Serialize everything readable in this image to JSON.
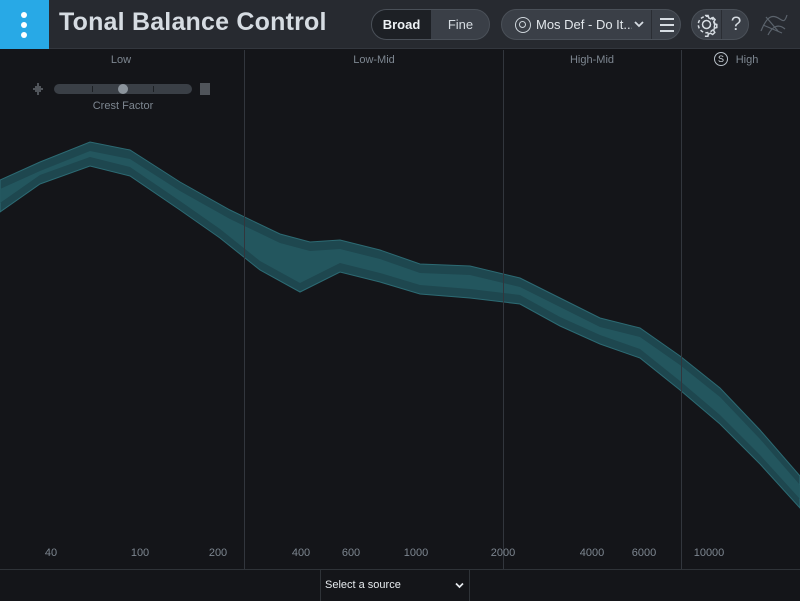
{
  "header": {
    "title": "Tonal Balance Control",
    "resolution": {
      "options": [
        "Broad",
        "Fine"
      ],
      "selected": "Broad"
    },
    "target": {
      "name": "Mos Def - Do It...",
      "icon": "target-icon",
      "menu_icon": "hamburger-menu-icon"
    },
    "settings_icon": "gear-icon",
    "help_label": "?",
    "logo_icon": "izotope-logo-icon"
  },
  "bands": [
    {
      "label": "Low"
    },
    {
      "label": "Low-Mid"
    },
    {
      "label": "High-Mid"
    },
    {
      "label": "High",
      "solo_badge": "S"
    }
  ],
  "crest_factor": {
    "label": "Crest Factor",
    "value": 0.5,
    "left_icon": "waveform-sparse-icon",
    "right_icon": "waveform-dense-icon"
  },
  "frequency_axis": {
    "scale": "log",
    "range_hz": [
      20,
      22000
    ],
    "ticks": [
      "40",
      "100",
      "200",
      "400",
      "600",
      "1000",
      "2000",
      "4000",
      "6000",
      "10000"
    ]
  },
  "target_curve": {
    "color": "#1f4a52",
    "edge_color": "#2e6f78",
    "center_color": "#24585f"
  },
  "footer": {
    "source_placeholder": "Select a source"
  },
  "colors": {
    "accent": "#28a9e6",
    "header_bg": "#272a30",
    "plot_bg": "#141519"
  }
}
